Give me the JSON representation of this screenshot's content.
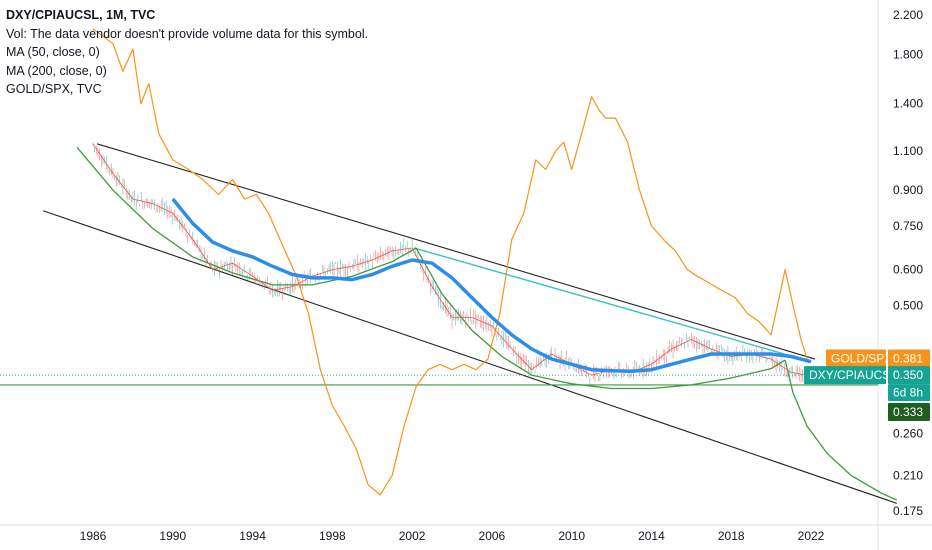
{
  "legend": {
    "title": "DXY/CPIAUCSL, 1M, TVC",
    "vol": "Vol: The data vendor doesn't provide volume data for this symbol.",
    "ma50": "MA (50, close, 0)",
    "ma200": "MA (200, close, 0)",
    "compare": "GOLD/SPX, TVC"
  },
  "badges": {
    "gold_label": "GOLD/SPX",
    "gold_value": "0.381",
    "dxy_label": "DXY/CPIAUCSL",
    "dxy_value": "0.350",
    "countdown": "6d 8h",
    "line_value": "0.333"
  },
  "colors": {
    "gold": "#f7931a",
    "ma": "#2d8ee8",
    "candle_up": "#26a69a",
    "candle_down": "#ef5350",
    "arc": "#3d9a3d",
    "channel": "#222222",
    "trend": "#3ac3c8",
    "badge_dxy": "#16a394",
    "badge_line": "#1e5e1e"
  },
  "chart_data": {
    "type": "line",
    "scale": "log",
    "xlim": [
      1983.5,
      2026.5
    ],
    "ylim": [
      0.17,
      2.3
    ],
    "x_ticks": [
      "1986",
      "1990",
      "1994",
      "1998",
      "2002",
      "2006",
      "2010",
      "2014",
      "2018",
      "2022"
    ],
    "y_ticks": [
      "2.200",
      "1.800",
      "1.400",
      "1.100",
      "0.900",
      "0.750",
      "0.600",
      "0.500",
      "0.381",
      "0.350",
      "0.333",
      "0.260",
      "0.210",
      "0.175"
    ],
    "series": [
      {
        "name": "GOLD/SPX",
        "x": [
          1986,
          1987,
          1987.5,
          1988,
          1988.4,
          1988.8,
          1989.3,
          1990,
          1990.8,
          1991.5,
          1992.3,
          1993,
          1993.6,
          1994.2,
          1994.8,
          1995.5,
          1996.2,
          1996.8,
          1997.4,
          1998,
          1998.6,
          1999.2,
          1999.8,
          2000.4,
          2001,
          2001.6,
          2002.2,
          2002.8,
          2003.4,
          2004,
          2004.6,
          2005.2,
          2005.8,
          2006.4,
          2007,
          2007.6,
          2008.2,
          2008.7,
          2009.2,
          2009.6,
          2010,
          2010.5,
          2011,
          2011.4,
          2011.7,
          2012.2,
          2012.8,
          2013.4,
          2014,
          2014.6,
          2015.2,
          2015.8,
          2016.3,
          2016.9,
          2017.5,
          2018.2,
          2018.8,
          2019.4,
          2020,
          2020.4,
          2020.7,
          2021.1,
          2021.5,
          2021.8
        ],
        "values": [
          2.05,
          1.9,
          1.65,
          1.85,
          1.4,
          1.55,
          1.2,
          1.05,
          1.0,
          0.95,
          0.88,
          0.95,
          0.86,
          0.88,
          0.8,
          0.68,
          0.58,
          0.48,
          0.36,
          0.3,
          0.27,
          0.24,
          0.2,
          0.19,
          0.21,
          0.27,
          0.33,
          0.36,
          0.37,
          0.36,
          0.37,
          0.36,
          0.38,
          0.48,
          0.7,
          0.8,
          1.05,
          1.0,
          1.1,
          1.15,
          1.0,
          1.2,
          1.45,
          1.35,
          1.3,
          1.3,
          1.15,
          0.9,
          0.75,
          0.7,
          0.66,
          0.6,
          0.58,
          0.56,
          0.54,
          0.52,
          0.48,
          0.46,
          0.43,
          0.52,
          0.6,
          0.5,
          0.42,
          0.381
        ]
      },
      {
        "name": "DXY/CPIAUCSL",
        "x": [
          1986,
          1987,
          1988,
          1989,
          1990,
          1991,
          1992,
          1993,
          1994,
          1995,
          1996,
          1997,
          1998,
          1999,
          2000,
          2001,
          2002,
          2003,
          2004,
          2005,
          2006,
          2007,
          2008,
          2009,
          2010,
          2011,
          2012,
          2013,
          2014,
          2015,
          2016,
          2017,
          2018,
          2019,
          2020,
          2021,
          2021.8
        ],
        "values": [
          1.14,
          0.98,
          0.86,
          0.84,
          0.8,
          0.7,
          0.6,
          0.62,
          0.58,
          0.54,
          0.55,
          0.58,
          0.6,
          0.61,
          0.63,
          0.66,
          0.67,
          0.55,
          0.47,
          0.47,
          0.45,
          0.4,
          0.36,
          0.39,
          0.37,
          0.35,
          0.36,
          0.355,
          0.37,
          0.4,
          0.42,
          0.4,
          0.385,
          0.39,
          0.38,
          0.355,
          0.35
        ]
      },
      {
        "name": "MA (50, close, 0)",
        "x": [
          1990,
          1991,
          1992,
          1993,
          1994,
          1995,
          1996,
          1997,
          1998,
          1999,
          2000,
          2001,
          2002,
          2003,
          2004,
          2005,
          2006,
          2007,
          2008,
          2009,
          2010,
          2011,
          2012,
          2013,
          2014,
          2015,
          2016,
          2017,
          2018,
          2019,
          2020,
          2021,
          2022
        ],
        "values": [
          0.86,
          0.76,
          0.69,
          0.66,
          0.64,
          0.61,
          0.585,
          0.575,
          0.575,
          0.57,
          0.585,
          0.61,
          0.63,
          0.62,
          0.575,
          0.52,
          0.47,
          0.43,
          0.4,
          0.38,
          0.37,
          0.36,
          0.358,
          0.357,
          0.36,
          0.37,
          0.38,
          0.39,
          0.39,
          0.39,
          0.39,
          0.385,
          0.375
        ]
      }
    ]
  }
}
